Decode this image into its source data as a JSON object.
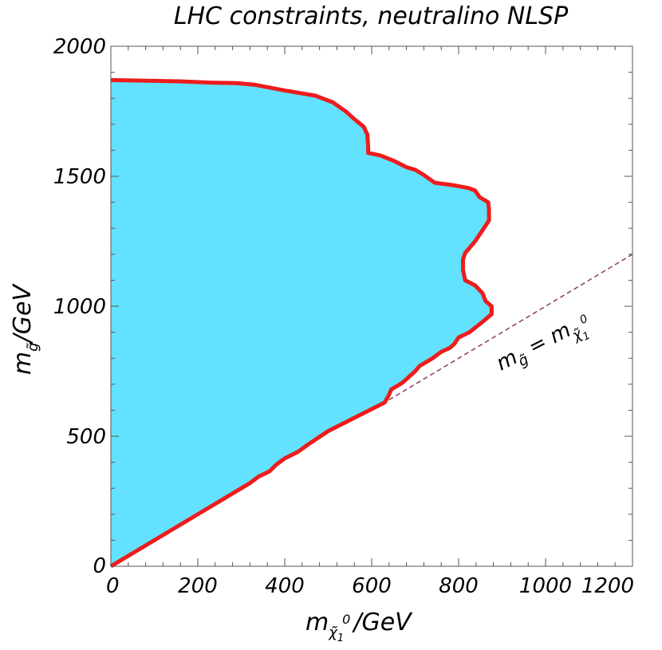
{
  "chart_data": {
    "type": "area",
    "title": "LHC constraints, neutralino NLSP",
    "xlabel": {
      "main": "m",
      "subscript": "χ̃",
      "sub_sub": "1",
      "superscript": "0",
      "suffix": "/GeV"
    },
    "ylabel": {
      "main": "m",
      "subscript": "g̃",
      "suffix": "/GeV"
    },
    "xlim": [
      0,
      1200
    ],
    "ylim": [
      0,
      2000
    ],
    "x_ticks": [
      0,
      200,
      400,
      600,
      800,
      1000,
      1200
    ],
    "y_ticks": [
      0,
      500,
      1000,
      1500,
      2000
    ],
    "x_tick_labels": [
      "0",
      "200",
      "400",
      "600",
      "800",
      "1000",
      "1200"
    ],
    "y_tick_labels": [
      "0",
      "500",
      "1000",
      "1500",
      "2000"
    ],
    "x_minor_step": 40,
    "y_minor_step": 100,
    "diagonal_label": {
      "lhs": "m",
      "lhs_sub": "g̃",
      "eq": " = ",
      "rhs": "m",
      "rhs_sub": "χ̃",
      "rhs_sub_sub": "1",
      "rhs_sup": "0"
    },
    "series": [
      {
        "name": "excluded region boundary",
        "fill": "#62e2fe",
        "stroke": "#ee1c1c",
        "points": [
          [
            0,
            1870
          ],
          [
            160,
            1865
          ],
          [
            230,
            1860
          ],
          [
            290,
            1858
          ],
          [
            330,
            1852
          ],
          [
            400,
            1830
          ],
          [
            470,
            1810
          ],
          [
            510,
            1785
          ],
          [
            540,
            1750
          ],
          [
            560,
            1720
          ],
          [
            582,
            1690
          ],
          [
            590,
            1660
          ],
          [
            592,
            1610
          ],
          [
            592,
            1590
          ],
          [
            620,
            1580
          ],
          [
            650,
            1560
          ],
          [
            680,
            1535
          ],
          [
            700,
            1525
          ],
          [
            720,
            1505
          ],
          [
            745,
            1475
          ],
          [
            790,
            1465
          ],
          [
            822,
            1455
          ],
          [
            838,
            1445
          ],
          [
            848,
            1420
          ],
          [
            868,
            1400
          ],
          [
            870,
            1370
          ],
          [
            870,
            1330
          ],
          [
            858,
            1300
          ],
          [
            838,
            1250
          ],
          [
            815,
            1205
          ],
          [
            810,
            1180
          ],
          [
            810,
            1140
          ],
          [
            815,
            1100
          ],
          [
            838,
            1080
          ],
          [
            855,
            1050
          ],
          [
            862,
            1020
          ],
          [
            876,
            1000
          ],
          [
            876,
            970
          ],
          [
            855,
            940
          ],
          [
            825,
            900
          ],
          [
            800,
            880
          ],
          [
            790,
            855
          ],
          [
            780,
            840
          ],
          [
            760,
            825
          ],
          [
            740,
            800
          ],
          [
            710,
            770
          ],
          [
            700,
            750
          ],
          [
            670,
            705
          ],
          [
            645,
            680
          ],
          [
            640,
            660
          ],
          [
            630,
            630
          ],
          [
            500,
            520
          ],
          [
            455,
            470
          ],
          [
            430,
            440
          ],
          [
            400,
            415
          ],
          [
            380,
            390
          ],
          [
            365,
            365
          ],
          [
            340,
            345
          ],
          [
            320,
            320
          ],
          [
            0,
            0
          ]
        ]
      },
      {
        "name": "m_gluino = m_neutralino",
        "style": "dashed",
        "stroke": "#8b3a6e",
        "points": [
          [
            640,
            640
          ],
          [
            1200,
            1200
          ]
        ]
      }
    ],
    "fill_color": "#62e2fe",
    "boundary_color": "#ee1c1c",
    "diagonal_color": "#8b3a6e",
    "frame_color": "#555555"
  }
}
